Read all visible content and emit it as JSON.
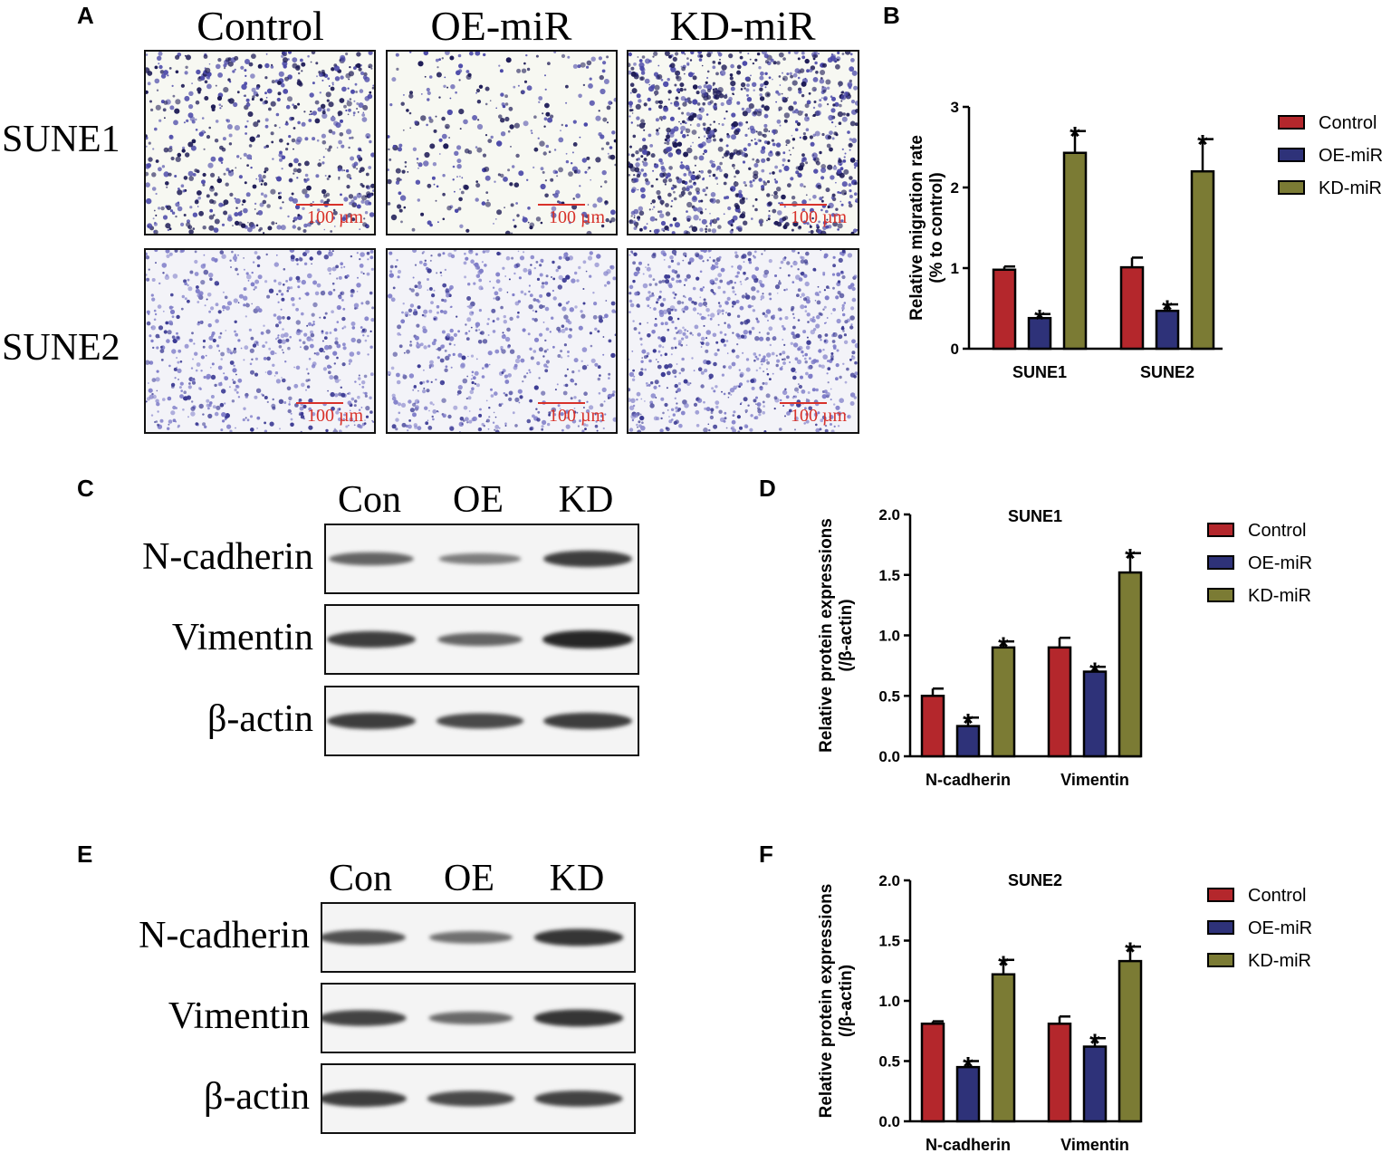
{
  "panels": {
    "A": {
      "letter": "A",
      "columns": [
        "Control",
        "OE-miR",
        "KD-miR"
      ],
      "rows": [
        "SUNE1",
        "SUNE2"
      ],
      "scale_label": "100 µm",
      "density": [
        [
          0.55,
          0.2,
          0.95
        ],
        [
          0.55,
          0.5,
          0.75
        ]
      ]
    },
    "C": {
      "letter": "C",
      "lanes": [
        "Con",
        "OE",
        "KD"
      ],
      "rows": [
        "N-cadherin",
        "Vimentin",
        "β-actin"
      ],
      "intensity": [
        [
          0.55,
          0.35,
          0.85
        ],
        [
          0.85,
          0.55,
          1.0
        ],
        [
          0.85,
          0.75,
          0.85
        ]
      ]
    },
    "E": {
      "letter": "E",
      "lanes": [
        "Con",
        "OE",
        "KD"
      ],
      "rows": [
        "N-cadherin",
        "Vimentin",
        "β-actin"
      ],
      "intensity": [
        [
          0.7,
          0.45,
          0.9
        ],
        [
          0.8,
          0.5,
          0.9
        ],
        [
          0.85,
          0.75,
          0.8
        ]
      ]
    }
  },
  "colors": {
    "control": "#b4272c",
    "oe": "#2e3279",
    "kd": "#7b7b34"
  },
  "chart_data": [
    {
      "panel": "B",
      "type": "bar",
      "title": "",
      "categories": [
        "SUNE1",
        "SUNE2"
      ],
      "series": [
        {
          "name": "Control",
          "values": [
            0.98,
            1.01
          ],
          "errors": [
            0.04,
            0.12
          ]
        },
        {
          "name": "OE-miR",
          "values": [
            0.38,
            0.47
          ],
          "errors": [
            0.05,
            0.08
          ]
        },
        {
          "name": "KD-miR",
          "values": [
            2.43,
            2.2
          ],
          "errors": [
            0.27,
            0.4
          ]
        }
      ],
      "significant": [
        [
          false,
          false
        ],
        [
          true,
          true
        ],
        [
          true,
          true
        ]
      ],
      "ylabel": [
        "Relative migration rate",
        "(% to control)"
      ],
      "ylim": [
        0,
        3
      ],
      "yticks": [
        "0",
        "1",
        "2",
        "3"
      ],
      "significance_marker": "*",
      "legend_position": "right"
    },
    {
      "panel": "D",
      "type": "bar",
      "title": "SUNE1",
      "categories": [
        "N-cadherin",
        "Vimentin"
      ],
      "series": [
        {
          "name": "Control",
          "values": [
            0.5,
            0.9
          ],
          "errors": [
            0.06,
            0.08
          ]
        },
        {
          "name": "OE-miR",
          "values": [
            0.25,
            0.7
          ],
          "errors": [
            0.07,
            0.04
          ]
        },
        {
          "name": "KD-miR",
          "values": [
            0.9,
            1.52
          ],
          "errors": [
            0.05,
            0.16
          ]
        }
      ],
      "significant": [
        [
          false,
          false
        ],
        [
          true,
          true
        ],
        [
          true,
          true
        ]
      ],
      "ylabel": [
        "Relative protein expressions",
        "(/β-actin)"
      ],
      "ylim": [
        0,
        2
      ],
      "yticks": [
        "0.0",
        "0.5",
        "1.0",
        "1.5",
        "2.0"
      ],
      "significance_marker": "*",
      "legend_position": "right"
    },
    {
      "panel": "F",
      "type": "bar",
      "title": "SUNE2",
      "categories": [
        "N-cadherin",
        "Vimentin"
      ],
      "series": [
        {
          "name": "Control",
          "values": [
            0.81,
            0.81
          ],
          "errors": [
            0.02,
            0.06
          ]
        },
        {
          "name": "OE-miR",
          "values": [
            0.45,
            0.62
          ],
          "errors": [
            0.05,
            0.07
          ]
        },
        {
          "name": "KD-miR",
          "values": [
            1.22,
            1.33
          ],
          "errors": [
            0.12,
            0.12
          ]
        }
      ],
      "significant": [
        [
          false,
          false
        ],
        [
          true,
          true
        ],
        [
          true,
          true
        ]
      ],
      "ylabel": [
        "Relative protein expressions",
        "(/β-actin)"
      ],
      "ylim": [
        0,
        2
      ],
      "yticks": [
        "0.0",
        "0.5",
        "1.0",
        "1.5",
        "2.0"
      ],
      "significance_marker": "*",
      "legend_position": "right"
    }
  ]
}
